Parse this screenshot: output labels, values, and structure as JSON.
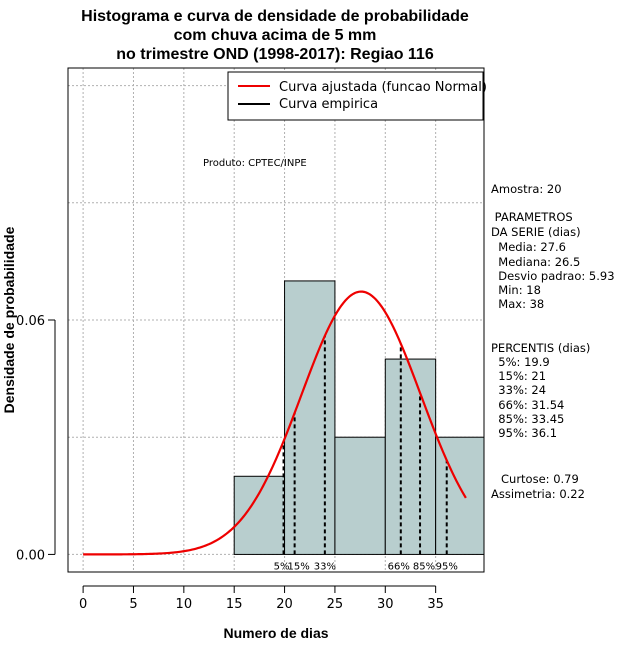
{
  "title_lines": [
    "Histograma e curva de densidade de probabilidade",
    "com chuva acima de 5 mm",
    "no trimestre OND (1998-2017): Regiao 116"
  ],
  "xlabel": "Numero de dias",
  "ylabel": "Densidade de probabilidade",
  "legend": [
    {
      "label": "Curva ajustada (funcao Normal)",
      "color": "#ee0000"
    },
    {
      "label": "Curva empirica",
      "color": "#000000"
    }
  ],
  "product_note": "Produto: CPTEC/INPE",
  "stats_lines": [
    "Amostra: 20",
    " PARAMETROS",
    "DA SERIE (dias)",
    "  Media: 27.6",
    "  Mediana: 26.5",
    "  Desvio padrao: 5.93",
    "  Min: 18",
    "  Max: 38",
    "PERCENTIS (dias)",
    "  5%: 19.9",
    "  15%: 21",
    "  33%: 24",
    "  66%: 31.54",
    "  85%: 33.45",
    "  95%: 36.1",
    "Curtose: 0.79",
    "Assimetria: 0.22"
  ],
  "chart_data": {
    "type": "bar",
    "subtype": "histogram",
    "xlim": [
      -1.5,
      39.8
    ],
    "ylim": [
      -0.0045,
      0.1245
    ],
    "x_ticks": [
      0,
      5,
      10,
      15,
      20,
      25,
      30,
      35
    ],
    "y_ticks": [
      0.0,
      0.06
    ],
    "y_tick_labels": [
      "0.00",
      "0.06"
    ],
    "grid": true,
    "bar_color": "#b8cece",
    "bins": [
      {
        "x0": 15,
        "x1": 20,
        "density": 0.02
      },
      {
        "x0": 20,
        "x1": 25,
        "density": 0.07
      },
      {
        "x0": 25,
        "x1": 30,
        "density": 0.03
      },
      {
        "x0": 30,
        "x1": 35,
        "density": 0.05
      },
      {
        "x0": 35,
        "x1": 40,
        "density": 0.03
      }
    ],
    "normal_fit": {
      "mean": 27.6,
      "sd": 5.93,
      "from": 0,
      "to": 38,
      "color": "#ee0000"
    },
    "percentiles": [
      {
        "label": "5%",
        "value": 19.9
      },
      {
        "label": "15%",
        "value": 21
      },
      {
        "label": "33%",
        "value": 24
      },
      {
        "label": "66%",
        "value": 31.54
      },
      {
        "label": "85%",
        "value": 33.45
      },
      {
        "label": "95%",
        "value": 36.1
      }
    ]
  }
}
